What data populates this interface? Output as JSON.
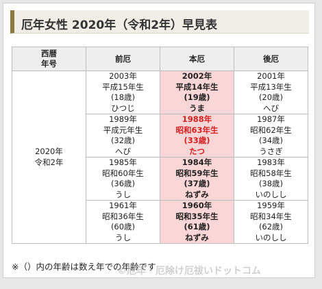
{
  "title": "厄年女性 2020年（令和2年）早見表",
  "table": {
    "headers": {
      "year_col": [
        "西暦",
        "年号"
      ],
      "mae": "前厄",
      "hon": "本厄",
      "ato": "後厄"
    },
    "current_year": [
      "2020年",
      "令和2年"
    ],
    "rows": [
      {
        "mae": [
          "2003年",
          "平成15年生",
          "(18歳)",
          "ひつじ"
        ],
        "hon": [
          "2002年",
          "平成14年生",
          "(19歳)",
          "うま"
        ],
        "ato": [
          "2001年",
          "平成13年生",
          "(20歳)",
          "へび"
        ],
        "hon_highlight": false
      },
      {
        "mae": [
          "1989年",
          "平成元年生",
          "(32歳)",
          "へび"
        ],
        "hon": [
          "1988年",
          "昭和63年生",
          "(33歳)",
          "たつ"
        ],
        "ato": [
          "1987年",
          "昭和62年生",
          "(34歳)",
          "うさぎ"
        ],
        "hon_highlight": true
      },
      {
        "mae": [
          "1985年",
          "昭和60年生",
          "(36歳)",
          "うし"
        ],
        "hon": [
          "1984年",
          "昭和59年生",
          "(37歳)",
          "ねずみ"
        ],
        "ato": [
          "1983年",
          "昭和58年生",
          "(38歳)",
          "いのしし"
        ],
        "hon_highlight": false
      },
      {
        "mae": [
          "1961年",
          "昭和36年生",
          "(60歳)",
          "うし"
        ],
        "hon": [
          "1960年",
          "昭和35年生",
          "(61歳)",
          "ねずみ"
        ],
        "ato": [
          "1959年",
          "昭和34年生",
          "(62歳)",
          "いのしし"
        ],
        "hon_highlight": false
      }
    ]
  },
  "footnote": "※（）内の年齢は数え年での年齢です",
  "watermark": "©厄年・厄除け厄祓いドットコム",
  "colors": {
    "accent": "#8c7a3f",
    "hon_bg": "#fad6d6",
    "hon_red": "#d21f1f"
  }
}
